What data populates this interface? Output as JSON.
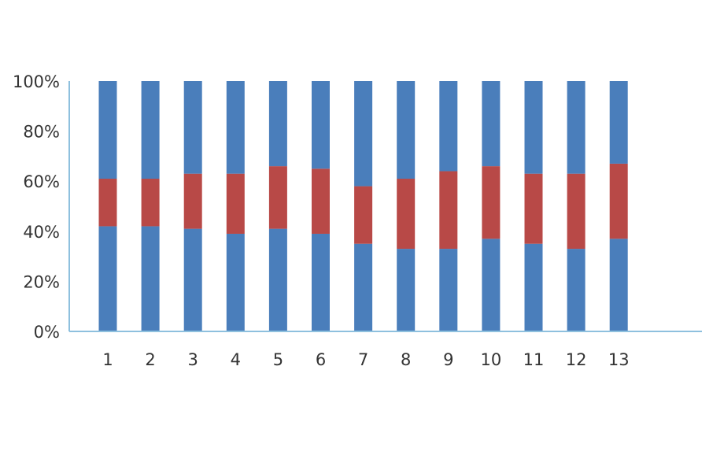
{
  "chart_data": {
    "type": "bar",
    "stacked": true,
    "percent_stacked": true,
    "title": "",
    "xlabel": "",
    "ylabel": "",
    "ylim": [
      0,
      100
    ],
    "grid": false,
    "legend": "none",
    "categories": [
      "1",
      "2",
      "3",
      "4",
      "5",
      "6",
      "7",
      "8",
      "9",
      "10",
      "11",
      "12",
      "13"
    ],
    "y_ticks": [
      "0%",
      "20%",
      "40%",
      "60%",
      "80%",
      "100%"
    ],
    "y_tick_values": [
      0,
      20,
      40,
      60,
      80,
      100
    ],
    "series": [
      {
        "values": [
          42,
          42,
          41,
          39,
          41,
          39,
          35,
          33,
          33,
          37,
          35,
          33,
          37
        ],
        "color": "#4a7ebb"
      },
      {
        "values": [
          19,
          19,
          22,
          24,
          25,
          26,
          23,
          28,
          31,
          29,
          28,
          30,
          30
        ],
        "color": "#b84947"
      },
      {
        "values": [
          39,
          39,
          37,
          37,
          34,
          35,
          42,
          39,
          36,
          34,
          37,
          37,
          33
        ],
        "color": "#4a7ebb"
      }
    ],
    "axis_color": "#8ec0de"
  }
}
